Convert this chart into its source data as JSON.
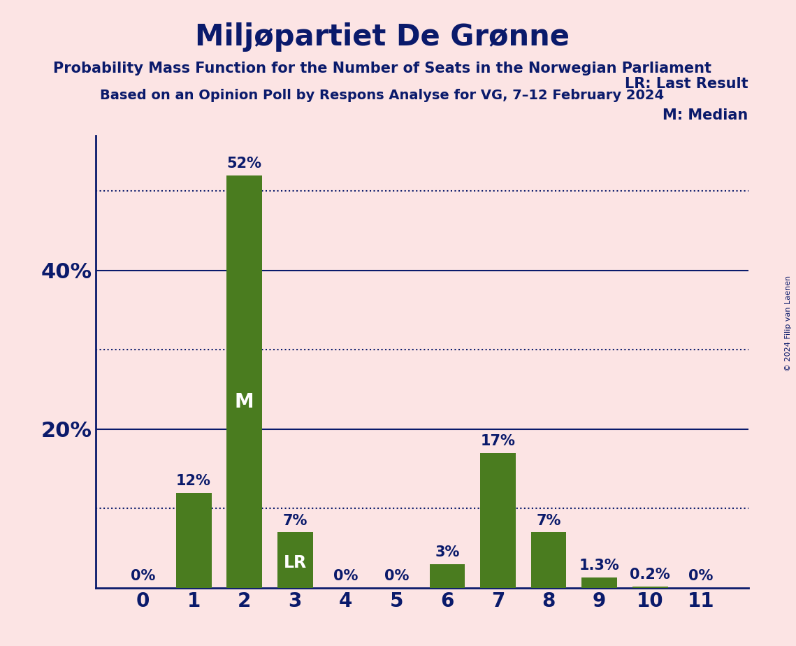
{
  "title": "Miljøpartiet De Grønne",
  "subtitle1": "Probability Mass Function for the Number of Seats in the Norwegian Parliament",
  "subtitle2": "Based on an Opinion Poll by Respons Analyse for VG, 7–12 February 2024",
  "copyright": "© 2024 Filip van Laenen",
  "categories": [
    0,
    1,
    2,
    3,
    4,
    5,
    6,
    7,
    8,
    9,
    10,
    11
  ],
  "values": [
    0.0,
    12.0,
    52.0,
    7.0,
    0.0,
    0.0,
    3.0,
    17.0,
    7.0,
    1.3,
    0.2,
    0.0
  ],
  "labels": [
    "0%",
    "12%",
    "52%",
    "7%",
    "0%",
    "0%",
    "3%",
    "17%",
    "7%",
    "1.3%",
    "0.2%",
    "0%"
  ],
  "bar_color": "#4a7c1f",
  "background_color": "#fce4e4",
  "text_color": "#0a1a6b",
  "median_bar": 2,
  "lr_bar": 3,
  "median_label": "M",
  "lr_label": "LR",
  "legend_lr": "LR: Last Result",
  "legend_m": "M: Median",
  "dotted_lines": [
    10,
    30,
    50
  ],
  "solid_lines": [
    20,
    40
  ],
  "ylim": [
    0,
    57
  ],
  "bar_width": 0.7,
  "title_fontsize": 30,
  "subtitle_fontsize": 15,
  "label_fontsize": 15,
  "ytick_fontsize": 22,
  "xtick_fontsize": 20,
  "legend_fontsize": 15,
  "inside_label_fontsize": 20
}
